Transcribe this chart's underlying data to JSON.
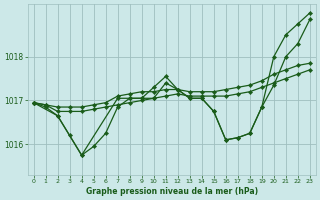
{
  "bg_color": "#cce8e8",
  "grid_color": "#9fbfbf",
  "line_color": "#1a5c1a",
  "xlabel": "Graphe pression niveau de la mer (hPa)",
  "xlim": [
    -0.5,
    23.5
  ],
  "ylim": [
    1015.3,
    1019.2
  ],
  "yticks": [
    1016,
    1017,
    1018
  ],
  "xticks": [
    0,
    1,
    2,
    3,
    4,
    5,
    6,
    7,
    8,
    9,
    10,
    11,
    12,
    13,
    14,
    15,
    16,
    17,
    18,
    19,
    20,
    21,
    22,
    23
  ],
  "series": [
    {
      "x": [
        0,
        1,
        2,
        3,
        4,
        5,
        6,
        7,
        8,
        9,
        10,
        11,
        12,
        13,
        14,
        15,
        16,
        17,
        18,
        19,
        20,
        21,
        22,
        23
      ],
      "y": [
        1016.95,
        1016.9,
        1016.75,
        1016.75,
        1016.75,
        1016.8,
        1016.85,
        1016.9,
        1016.95,
        1017.0,
        1017.05,
        1017.1,
        1017.15,
        1017.1,
        1017.1,
        1017.1,
        1017.1,
        1017.15,
        1017.2,
        1017.3,
        1017.4,
        1017.5,
        1017.6,
        1017.7
      ]
    },
    {
      "x": [
        0,
        1,
        2,
        3,
        4,
        5,
        6,
        7,
        8,
        9,
        10,
        11,
        12,
        13,
        14,
        15,
        16,
        17,
        18,
        19,
        20,
        21,
        22,
        23
      ],
      "y": [
        1016.95,
        1016.85,
        1016.65,
        1016.2,
        1015.75,
        1015.95,
        1016.25,
        1016.85,
        1017.05,
        1017.05,
        1017.05,
        1017.4,
        1017.25,
        1017.05,
        1017.05,
        1016.75,
        1016.1,
        1016.15,
        1016.25,
        1016.85,
        1017.35,
        1018.0,
        1018.3,
        1018.85
      ]
    },
    {
      "x": [
        0,
        2,
        4,
        7,
        8,
        9,
        10,
        11,
        12,
        13,
        14,
        15,
        16,
        17,
        18,
        19,
        20,
        21,
        22,
        23
      ],
      "y": [
        1016.95,
        1016.65,
        1015.75,
        1017.05,
        1017.05,
        1017.05,
        1017.3,
        1017.55,
        1017.25,
        1017.05,
        1017.05,
        1016.75,
        1016.1,
        1016.15,
        1016.25,
        1016.85,
        1018.0,
        1018.5,
        1018.75,
        1019.0
      ]
    },
    {
      "x": [
        0,
        1,
        2,
        3,
        4,
        5,
        6,
        7,
        8,
        9,
        10,
        11,
        12,
        13,
        14,
        15,
        16,
        17,
        18,
        19,
        20,
        21,
        22,
        23
      ],
      "y": [
        1016.95,
        1016.9,
        1016.85,
        1016.85,
        1016.85,
        1016.9,
        1016.95,
        1017.1,
        1017.15,
        1017.2,
        1017.2,
        1017.25,
        1017.25,
        1017.2,
        1017.2,
        1017.2,
        1017.25,
        1017.3,
        1017.35,
        1017.45,
        1017.6,
        1017.7,
        1017.8,
        1017.85
      ]
    }
  ]
}
